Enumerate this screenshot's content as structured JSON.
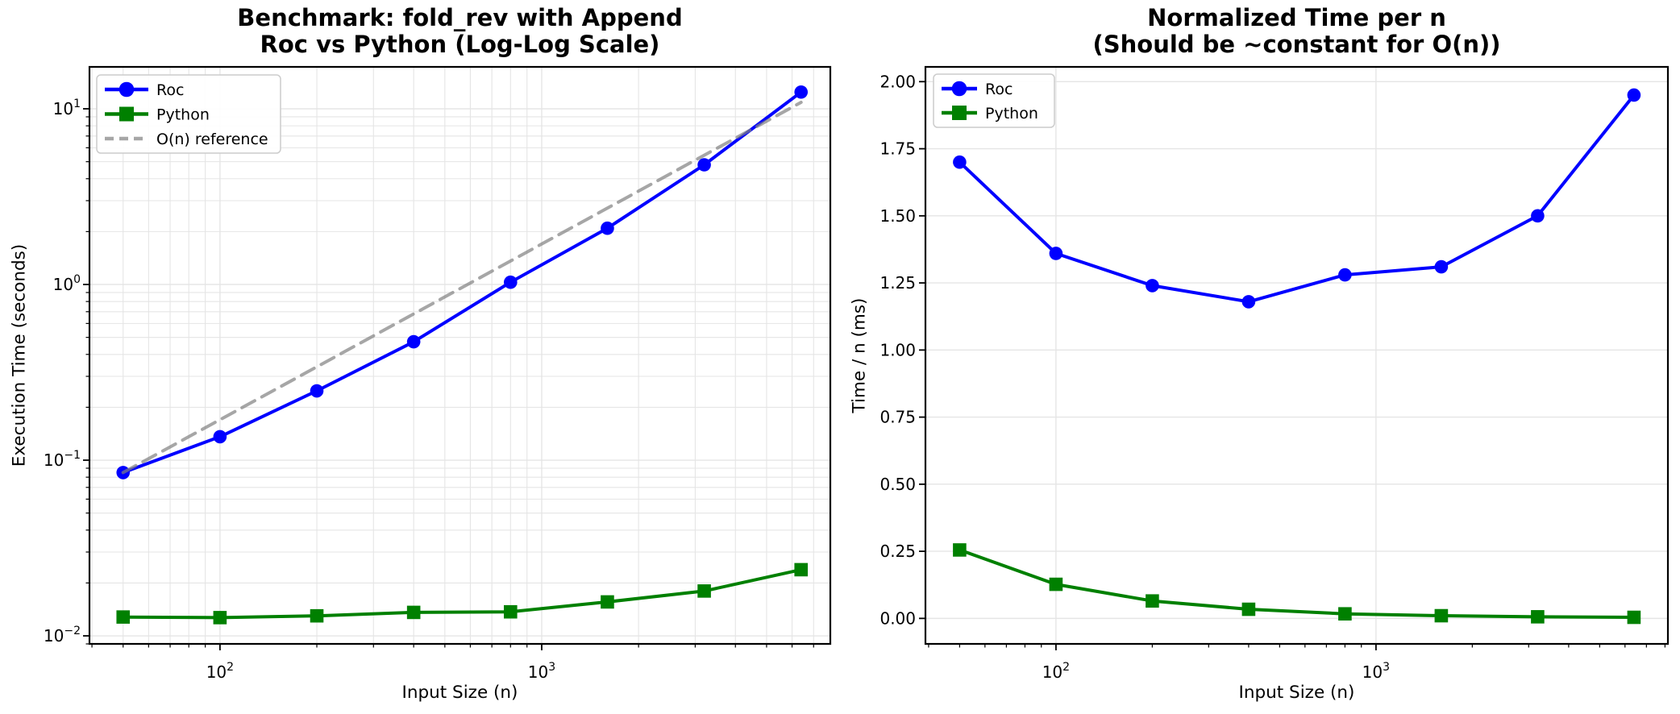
{
  "figure": {
    "background": "#ffffff",
    "text_color": "#000000",
    "grid_color": "#e5e5e5",
    "spine_color": "#000000",
    "legend_border_color": "#cccccc"
  },
  "chart_data": [
    {
      "id": "execution-time",
      "type": "line",
      "title_line1": "Benchmark: fold_rev with Append",
      "title_line2": "Roc vs Python (Log-Log Scale)",
      "xlabel": "Input Size (n)",
      "ylabel": "Execution Time (seconds)",
      "xscale": "log",
      "yscale": "log",
      "xlim": [
        39.3,
        7890
      ],
      "ylim": [
        0.009,
        17.32
      ],
      "grid": "both",
      "legend_position": "upper-left",
      "x": [
        50,
        100,
        200,
        400,
        800,
        1600,
        3200,
        6400
      ],
      "series": [
        {
          "name": "Roc",
          "color": "#0000ff",
          "marker": "circle",
          "line": "solid",
          "values": [
            0.085,
            0.136,
            0.248,
            0.472,
            1.03,
            2.09,
            4.8,
            12.45
          ]
        },
        {
          "name": "Python",
          "color": "#008000",
          "marker": "square",
          "line": "solid",
          "values": [
            0.0128,
            0.0127,
            0.013,
            0.0136,
            0.0137,
            0.0156,
            0.018,
            0.0238
          ]
        },
        {
          "name": "O(n) reference",
          "color": "#808080",
          "opacity": 0.7,
          "marker": "none",
          "line": "dashed",
          "values": [
            0.085,
            0.17,
            0.34,
            0.68,
            1.36,
            2.72,
            5.44,
            10.88
          ]
        }
      ],
      "x_ticks": [
        {
          "value": 100,
          "base": "10",
          "exp": "2"
        },
        {
          "value": 1000,
          "base": "10",
          "exp": "3"
        }
      ],
      "y_ticks": [
        {
          "value": 10,
          "base": "10",
          "exp": "1"
        },
        {
          "value": 1,
          "base": "10",
          "exp": "0"
        },
        {
          "value": 0.1,
          "base": "10",
          "exp": "−1"
        },
        {
          "value": 0.01,
          "base": "10",
          "exp": "−2"
        }
      ]
    },
    {
      "id": "normalized-time",
      "type": "line",
      "title_line1": "Normalized Time per n",
      "title_line2": "(Should be ~constant for O(n))",
      "xlabel": "Input Size (n)",
      "ylabel": "Time / n (ms)",
      "xscale": "log",
      "yscale": "linear",
      "xlim": [
        39.1,
        8170
      ],
      "ylim": [
        -0.095,
        2.055
      ],
      "grid": "major",
      "legend_position": "upper-left",
      "x": [
        50,
        100,
        200,
        400,
        800,
        1600,
        3200,
        6400
      ],
      "series": [
        {
          "name": "Roc",
          "color": "#0000ff",
          "marker": "circle",
          "line": "solid",
          "values": [
            1.7,
            1.36,
            1.24,
            1.18,
            1.28,
            1.31,
            1.5,
            1.95
          ]
        },
        {
          "name": "Python",
          "color": "#008000",
          "marker": "square",
          "line": "solid",
          "values": [
            0.255,
            0.127,
            0.065,
            0.034,
            0.017,
            0.01,
            0.006,
            0.004
          ]
        }
      ],
      "x_ticks": [
        {
          "value": 100,
          "base": "10",
          "exp": "2"
        },
        {
          "value": 1000,
          "base": "10",
          "exp": "3"
        }
      ],
      "y_ticks": [
        {
          "value": 0,
          "label": "0.00"
        },
        {
          "value": 0.25,
          "label": "0.25"
        },
        {
          "value": 0.5,
          "label": "0.50"
        },
        {
          "value": 0.75,
          "label": "0.75"
        },
        {
          "value": 1,
          "label": "1.00"
        },
        {
          "value": 1.25,
          "label": "1.25"
        },
        {
          "value": 1.5,
          "label": "1.50"
        },
        {
          "value": 1.75,
          "label": "1.75"
        },
        {
          "value": 2,
          "label": "2.00"
        }
      ]
    }
  ]
}
